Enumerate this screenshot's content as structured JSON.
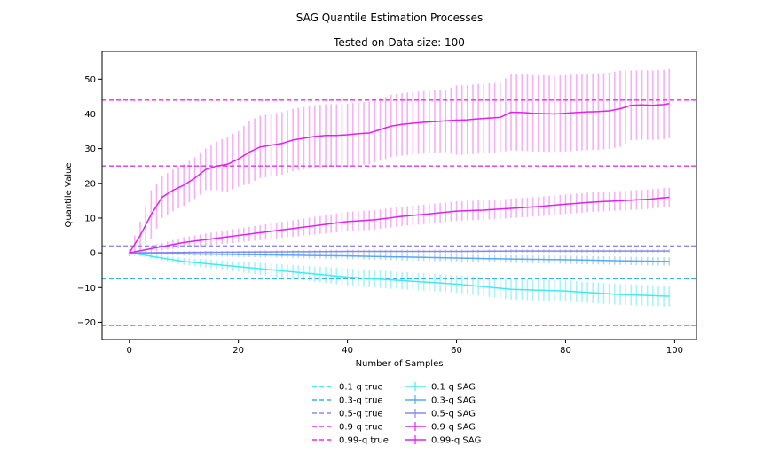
{
  "chart_data": {
    "type": "line",
    "suptitle": "SAG Quantile Estimation Processes",
    "title": "Tested on Data size: 100",
    "xlabel": "Number of Samples",
    "ylabel": "Quantile Value",
    "xlim": [
      -5,
      104
    ],
    "ylim": [
      -25,
      58
    ],
    "xticks": [
      0,
      20,
      40,
      60,
      80,
      100
    ],
    "yticks": [
      -20,
      -10,
      0,
      10,
      20,
      30,
      40,
      50
    ],
    "tick_labels_x": [
      "0",
      "20",
      "40",
      "60",
      "80",
      "100"
    ],
    "tick_labels_y": [
      "−20",
      "−10",
      "0",
      "10",
      "20",
      "30",
      "40",
      "50"
    ],
    "grid": false,
    "legend_placement": "below-center",
    "true_lines": [
      {
        "name": "0.1-q true",
        "value": -21,
        "color": "#00e5ee"
      },
      {
        "name": "0.3-q true",
        "value": -7.5,
        "color": "#3bb3e6"
      },
      {
        "name": "0.5-q true",
        "value": 2,
        "color": "#8c8cf0"
      },
      {
        "name": "0.9-q true",
        "value": 25,
        "color": "#e033ee"
      },
      {
        "name": "0.99-q true",
        "value": 44,
        "color": "#ff22ee"
      }
    ],
    "sag_series": [
      {
        "name": "0.1-q SAG",
        "color": "#44e8f0",
        "err_color": "#9af2f6",
        "x": [
          0,
          10,
          20,
          30,
          40,
          50,
          60,
          70,
          80,
          90,
          99
        ],
        "y": [
          0,
          -2.5,
          -4,
          -5.5,
          -7,
          -8,
          -9,
          -10.5,
          -11,
          -12,
          -12.5
        ],
        "err": [
          0.5,
          1,
          1.5,
          2,
          2.5,
          2.5,
          2.5,
          3,
          3,
          3,
          3
        ]
      },
      {
        "name": "0.3-q SAG",
        "color": "#5aa8f0",
        "err_color": "#a9d3f8",
        "x": [
          0,
          10,
          20,
          30,
          40,
          50,
          60,
          70,
          80,
          90,
          99
        ],
        "y": [
          0,
          -0.3,
          -0.5,
          -0.7,
          -0.9,
          -1.2,
          -1.5,
          -1.8,
          -2,
          -2.3,
          -2.5
        ],
        "err": [
          0.3,
          0.5,
          0.7,
          0.8,
          0.9,
          1,
          1,
          1.1,
          1.2,
          1.2,
          1.2
        ]
      },
      {
        "name": "0.5-q SAG",
        "color": "#8888ee",
        "err_color": "#c4c4f6",
        "x": [
          0,
          10,
          20,
          30,
          40,
          50,
          60,
          70,
          80,
          90,
          99
        ],
        "y": [
          0,
          0.1,
          0.2,
          0.3,
          0.4,
          0.4,
          0.4,
          0.5,
          0.5,
          0.5,
          0.5
        ],
        "err": [
          0.3,
          0.4,
          0.4,
          0.5,
          0.5,
          0.5,
          0.5,
          0.5,
          0.5,
          0.5,
          0.5
        ]
      },
      {
        "name": "0.9-q SAG",
        "color": "#e020f0",
        "err_color": "#f2a6f6",
        "x": [
          0,
          5,
          10,
          15,
          20,
          25,
          30,
          35,
          40,
          45,
          50,
          55,
          60,
          65,
          70,
          75,
          80,
          85,
          90,
          95,
          99
        ],
        "y": [
          0,
          1.5,
          3,
          4,
          5,
          6,
          7,
          8,
          9,
          9.5,
          10.5,
          11.2,
          12,
          12.3,
          12.8,
          13.3,
          14,
          14.6,
          15,
          15.4,
          16
        ],
        "err": [
          0.5,
          1,
          1.5,
          1.8,
          2,
          2.2,
          2.4,
          2.6,
          2.8,
          2.8,
          2.8,
          2.8,
          2.8,
          2.8,
          2.8,
          2.8,
          2.8,
          2.8,
          2.8,
          2.8,
          2.8
        ]
      },
      {
        "name": "0.99-q SAG",
        "color": "#e020f0",
        "err_color": "#f6a2f4",
        "x": [
          0,
          2,
          4,
          6,
          8,
          10,
          12,
          14,
          16,
          18,
          20,
          22,
          24,
          26,
          28,
          30,
          32,
          34,
          36,
          38,
          40,
          42,
          44,
          46,
          48,
          50,
          52,
          54,
          56,
          58,
          60,
          62,
          64,
          66,
          68,
          70,
          72,
          74,
          76,
          78,
          80,
          82,
          84,
          86,
          88,
          90,
          92,
          94,
          96,
          98,
          99
        ],
        "y": [
          0,
          5,
          11,
          16,
          18,
          19.5,
          21.5,
          24,
          25,
          25.5,
          27,
          29,
          30.5,
          31,
          31.5,
          32.5,
          33,
          33.5,
          33.8,
          33.8,
          34,
          34.3,
          34.5,
          35.5,
          36.5,
          37,
          37.3,
          37.6,
          37.8,
          38,
          38.2,
          38.3,
          38.6,
          38.8,
          39,
          40.5,
          40.4,
          40.2,
          40.1,
          40,
          40.2,
          40.4,
          40.6,
          40.7,
          40.9,
          41.5,
          42.5,
          42.6,
          42.5,
          42.7,
          43
        ],
        "err": [
          1,
          4,
          7,
          6,
          6,
          6,
          6,
          6,
          7,
          8,
          8,
          9,
          9,
          9,
          9,
          9,
          9,
          9,
          9,
          9,
          9,
          9,
          9,
          9,
          9,
          9,
          9,
          9,
          9,
          9,
          10,
          10,
          10,
          10,
          10,
          11,
          11,
          11,
          11,
          11,
          11,
          11,
          11,
          11,
          11,
          11,
          10,
          10,
          10,
          10,
          10
        ]
      }
    ]
  }
}
